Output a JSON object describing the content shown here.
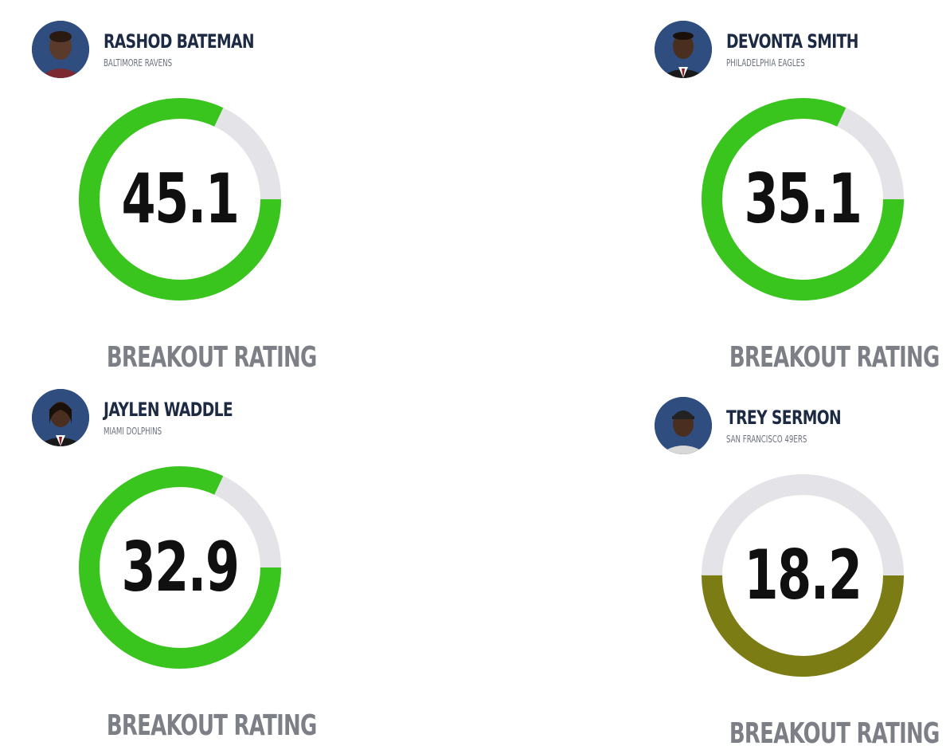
{
  "players": [
    {
      "name": "RASHOD BATEMAN",
      "team": "BALTIMORE RAVENS",
      "rating": "45.1",
      "rating_label": "BREAKOUT RATING",
      "fill_fraction": 0.82,
      "ring_color": "#39c41e",
      "track_color": "#e3e3e8",
      "avatar_bg": "#2f4d7e",
      "avatar_icon": "player-headshot"
    },
    {
      "name": "DEVONTA SMITH",
      "team": "PHILADELPHIA EAGLES",
      "rating": "35.1",
      "rating_label": "BREAKOUT RATING",
      "fill_fraction": 0.82,
      "ring_color": "#39c41e",
      "track_color": "#e3e3e8",
      "avatar_bg": "#2f4d7e",
      "avatar_icon": "player-headshot"
    },
    {
      "name": "JAYLEN WADDLE",
      "team": "MIAMI DOLPHINS",
      "rating": "32.9",
      "rating_label": "BREAKOUT RATING",
      "fill_fraction": 0.82,
      "ring_color": "#39c41e",
      "track_color": "#e3e3e8",
      "avatar_bg": "#2f4d7e",
      "avatar_icon": "player-headshot"
    },
    {
      "name": "TREY SERMON",
      "team": "SAN FRANCISCO 49ERS",
      "rating": "18.2",
      "rating_label": "BREAKOUT RATING",
      "fill_fraction": 0.5,
      "ring_color": "#7c7c14",
      "track_color": "#e3e3e8",
      "avatar_bg": "#2f4d7e",
      "avatar_icon": "player-headshot"
    }
  ]
}
